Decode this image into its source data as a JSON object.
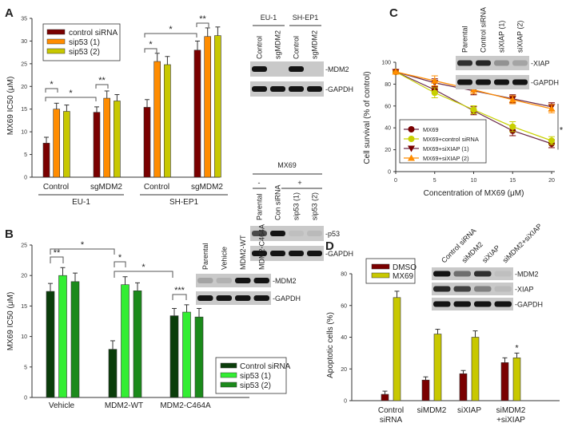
{
  "panels": {
    "A": "A",
    "B": "B",
    "C": "C",
    "D": "D"
  },
  "chart_data": [
    {
      "id": "A",
      "type": "bar",
      "title": "",
      "ylabel": "MX69 IC50 (μM)",
      "ylim": [
        0,
        35
      ],
      "yticks": [
        0,
        5,
        10,
        15,
        20,
        25,
        30,
        35
      ],
      "groups": [
        {
          "cell_line": "EU-1",
          "condition": "Control"
        },
        {
          "cell_line": "EU-1",
          "condition": "sgMDM2"
        },
        {
          "cell_line": "SH-EP1",
          "condition": "Control"
        },
        {
          "cell_line": "SH-EP1",
          "condition": "sgMDM2"
        }
      ],
      "categories": [
        "Control",
        "sgMDM2",
        "Control",
        "sgMDM2"
      ],
      "group_labels": [
        "EU-1",
        "SH-EP1"
      ],
      "series": [
        {
          "name": "control siRNA",
          "color": "#7a0000",
          "values": [
            7.5,
            14.3,
            15.4,
            28.0
          ],
          "errors": [
            1.3,
            1.2,
            1.7,
            2.0
          ]
        },
        {
          "name": "sip53 (1)",
          "color": "#ff8c00",
          "values": [
            15.0,
            17.4,
            25.5,
            31.0
          ],
          "errors": [
            1.3,
            1.6,
            1.8,
            1.9
          ]
        },
        {
          "name": "sip53 (2)",
          "color": "#c8c800",
          "values": [
            14.5,
            16.8,
            24.8,
            31.2
          ],
          "errors": [
            1.4,
            1.4,
            1.8,
            1.9
          ]
        }
      ],
      "annotations": [
        "*",
        "*",
        "**",
        "*",
        "*",
        "**"
      ],
      "legend": "top-left"
    },
    {
      "id": "B",
      "type": "bar",
      "ylabel": "MX69 IC50 (μM)",
      "ylim": [
        0,
        25
      ],
      "yticks": [
        0,
        5,
        10,
        15,
        20,
        25
      ],
      "categories": [
        "Vehicle",
        "MDM2-WT",
        "MDM2-C464A"
      ],
      "series": [
        {
          "name": "Control siRNA",
          "color": "#0a3d0a",
          "values": [
            17.4,
            7.9,
            13.4
          ],
          "errors": [
            1.3,
            1.4,
            1.2
          ]
        },
        {
          "name": "sip53 (1)",
          "color": "#33ee33",
          "values": [
            20.0,
            18.5,
            14.0
          ],
          "errors": [
            1.3,
            1.3,
            1.2
          ]
        },
        {
          "name": "sip53 (2)",
          "color": "#1b8a1b",
          "values": [
            19.0,
            17.5,
            13.2
          ],
          "errors": [
            1.4,
            1.3,
            1.4
          ]
        }
      ],
      "annotations": [
        "**",
        "*",
        "*",
        "*",
        "***"
      ],
      "legend": "bottom-right"
    },
    {
      "id": "C",
      "type": "line",
      "xlabel": "Concentration of MX69 (μM)",
      "ylabel": "Cell survival (% of control)",
      "xlim": [
        0,
        20
      ],
      "ylim": [
        0,
        100
      ],
      "xticks": [
        0,
        5,
        10,
        15,
        20
      ],
      "yticks": [
        0,
        20,
        40,
        60,
        80,
        100
      ],
      "x": [
        0,
        5,
        10,
        15,
        20
      ],
      "series": [
        {
          "name": "MX69",
          "color": "#7a0000",
          "line": "#6a2a4a",
          "marker": "circle",
          "values": [
            100,
            82,
            61,
            41,
            28
          ],
          "errors": [
            1,
            3,
            4,
            5,
            4
          ]
        },
        {
          "name": "MX69+control siRNA",
          "color": "#c8d000",
          "line": "#c8d000",
          "marker": "circle",
          "values": [
            100,
            79,
            62,
            45,
            31
          ],
          "errors": [
            1,
            5,
            4,
            5,
            4
          ]
        },
        {
          "name": "MX69+siXIAP (1)",
          "color": "#7a0000",
          "line": "#6a2a4a",
          "marker": "triangle-down",
          "values": [
            100,
            89,
            81,
            73,
            65
          ],
          "errors": [
            1,
            4,
            4,
            4,
            4
          ]
        },
        {
          "name": "MX69+siXIAP (2)",
          "color": "#ff8c00",
          "line": "#ff8c00",
          "marker": "triangle-up",
          "values": [
            100,
            91,
            82,
            72,
            63
          ],
          "errors": [
            1,
            5,
            4,
            4,
            4
          ]
        }
      ],
      "annotations": [
        "*"
      ],
      "legend": "bottom-left"
    },
    {
      "id": "D",
      "type": "bar",
      "ylabel": "Apoptotic cells (%)",
      "ylim": [
        0,
        80
      ],
      "yticks": [
        0,
        20,
        40,
        60,
        80
      ],
      "categories": [
        "Control siRNA",
        "siMDM2",
        "siXIAP",
        "siMDM2 +siXIAP"
      ],
      "category_lines": [
        [
          "Control",
          "siRNA"
        ],
        [
          "siMDM2"
        ],
        [
          "siXIAP"
        ],
        [
          "siMDM2",
          "+siXIAP"
        ]
      ],
      "series": [
        {
          "name": "DMSO",
          "color": "#7a0000",
          "values": [
            4,
            13,
            17,
            24
          ],
          "errors": [
            2,
            2,
            2,
            3
          ]
        },
        {
          "name": "MX69",
          "color": "#c8c800",
          "values": [
            65,
            42,
            40,
            27
          ],
          "errors": [
            4,
            3,
            4,
            3
          ]
        }
      ],
      "annotations": [
        "*"
      ],
      "legend": "top-left"
    }
  ],
  "blots": {
    "A_top": {
      "groups": [
        "EU-1",
        "SH-EP1"
      ],
      "lanes": [
        "Control",
        "sgMDM2",
        "Control",
        "sgMDM2"
      ],
      "rows": [
        "-MDM2",
        "-GAPDH"
      ],
      "intensity": [
        [
          1,
          0,
          1,
          0
        ],
        [
          1,
          1,
          1,
          1
        ]
      ]
    },
    "A_bottom": {
      "header": "MX69",
      "signs": [
        "-",
        "+"
      ],
      "lanes": [
        "Parental",
        "Con siRNA",
        "sip53 (1)",
        "sip53 (2)"
      ],
      "rows": [
        "-p53",
        "-GAPDH"
      ],
      "intensity": [
        [
          0.7,
          1,
          0.05,
          0.08
        ],
        [
          1,
          1,
          1,
          1
        ]
      ]
    },
    "B": {
      "lanes": [
        "Parental",
        "Vehicle",
        "MDM2-WT",
        "MDM2-C464A"
      ],
      "rows": [
        "-MDM2",
        "-GAPDH"
      ],
      "intensity": [
        [
          0.2,
          0.12,
          1,
          1
        ],
        [
          1,
          1,
          1,
          1
        ]
      ]
    },
    "C": {
      "lanes": [
        "Parental",
        "Control siRNA",
        "siXIAP (1)",
        "siXIAP (2)"
      ],
      "rows": [
        "-XIAP",
        "-GAPDH"
      ],
      "intensity": [
        [
          0.85,
          0.9,
          0.3,
          0.2
        ],
        [
          1,
          1,
          1,
          1
        ]
      ]
    },
    "D": {
      "lanes": [
        "Control siRNA",
        "siMDM2",
        "siXIAP",
        "siMDM2+siXIAP"
      ],
      "rows": [
        "-MDM2",
        "-XIAP",
        "-GAPDH"
      ],
      "intensity": [
        [
          1,
          0.5,
          0.85,
          0.05
        ],
        [
          0.9,
          0.75,
          0.4,
          0.08
        ],
        [
          1,
          1,
          1,
          1
        ]
      ]
    }
  }
}
